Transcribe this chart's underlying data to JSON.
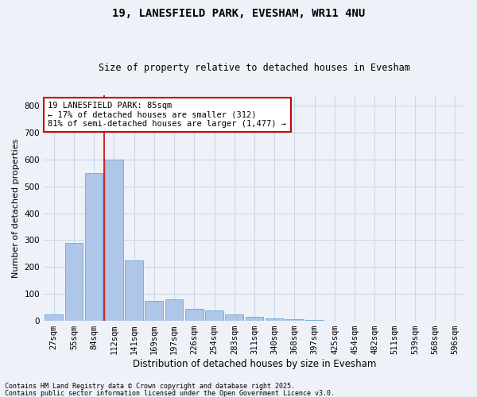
{
  "title": "19, LANESFIELD PARK, EVESHAM, WR11 4NU",
  "subtitle": "Size of property relative to detached houses in Evesham",
  "xlabel": "Distribution of detached houses by size in Evesham",
  "ylabel": "Number of detached properties",
  "footnote1": "Contains HM Land Registry data © Crown copyright and database right 2025.",
  "footnote2": "Contains public sector information licensed under the Open Government Licence v3.0.",
  "categories": [
    "27sqm",
    "55sqm",
    "84sqm",
    "112sqm",
    "141sqm",
    "169sqm",
    "197sqm",
    "226sqm",
    "254sqm",
    "283sqm",
    "311sqm",
    "340sqm",
    "368sqm",
    "397sqm",
    "425sqm",
    "454sqm",
    "482sqm",
    "511sqm",
    "539sqm",
    "568sqm",
    "596sqm"
  ],
  "values": [
    25,
    290,
    550,
    600,
    225,
    75,
    80,
    45,
    40,
    25,
    15,
    8,
    5,
    2,
    1,
    0,
    0,
    0,
    0,
    0,
    0
  ],
  "bar_color": "#aec6e8",
  "bar_edge_color": "#6aaad4",
  "grid_color": "#c8d8e8",
  "background_color": "#eef2f8",
  "vline_color": "#cc0000",
  "vline_x_index": 2.5,
  "annotation_text": "19 LANESFIELD PARK: 85sqm\n← 17% of detached houses are smaller (312)\n81% of semi-detached houses are larger (1,477) →",
  "annotation_box_facecolor": "#ffffff",
  "annotation_border_color": "#cc0000",
  "ylim": [
    0,
    840
  ],
  "yticks": [
    0,
    100,
    200,
    300,
    400,
    500,
    600,
    700,
    800
  ]
}
